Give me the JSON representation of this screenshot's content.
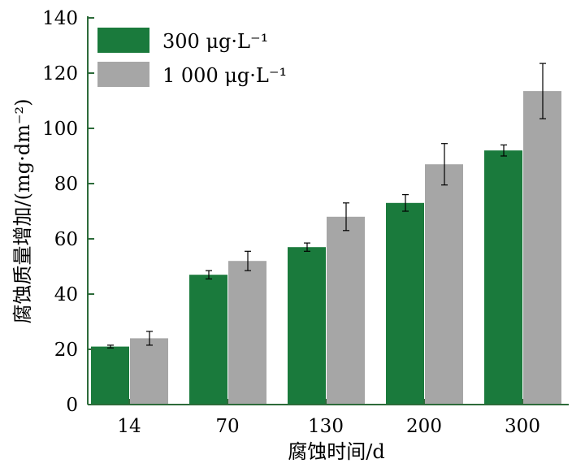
{
  "chart_data": {
    "type": "bar",
    "title": "",
    "xlabel": "腐蚀时间/d",
    "ylabel": "腐蚀质量增加/(mg·dm⁻²)",
    "ylim": [
      0,
      140
    ],
    "yticks": [
      "0",
      "20",
      "40",
      "60",
      "80",
      "100",
      "120",
      "140"
    ],
    "categories": [
      "14",
      "70",
      "130",
      "200",
      "300"
    ],
    "legend_position": "top-left",
    "series": [
      {
        "name": "300 μg·L⁻¹",
        "color": "#1a7a3c",
        "values": [
          21,
          47,
          57,
          73,
          92
        ],
        "errors": [
          0.5,
          1.5,
          1.5,
          3,
          2
        ]
      },
      {
        "name": "1 000 μg·L⁻¹",
        "color": "#a6a6a6",
        "values": [
          24,
          52,
          68,
          87,
          113.5
        ],
        "errors": [
          2.5,
          3.5,
          5,
          7.5,
          10
        ]
      }
    ],
    "axis_color": "#2d6b3a"
  }
}
